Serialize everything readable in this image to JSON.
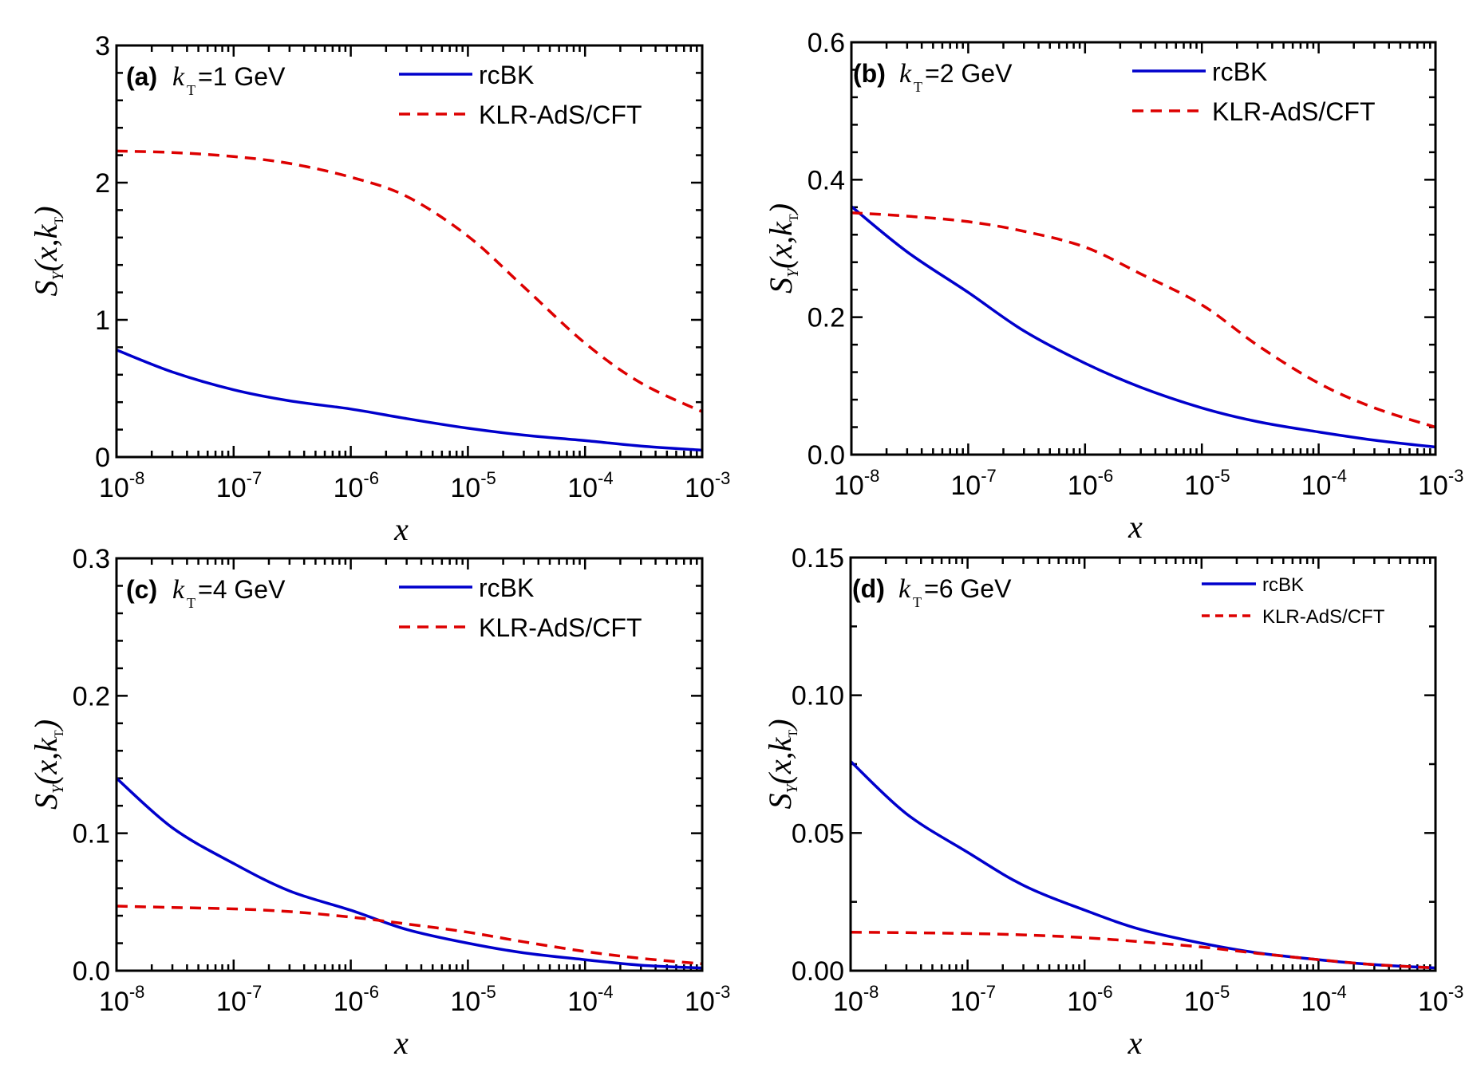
{
  "chart_data": [
    {
      "type": "line",
      "panel": "(a)",
      "title_tag": "(a)",
      "title_k": "k",
      "title_k_sub": "T",
      "title_value": "=1 GeV",
      "xlabel": "x",
      "ylabel": "S_Y(x,k_T)",
      "xscale": "log",
      "xlim": [
        1e-08,
        0.001
      ],
      "ylim": [
        0,
        3
      ],
      "yticks": [
        0,
        1,
        2,
        3
      ],
      "ytick_labels": [
        "0",
        "1",
        "2",
        "3"
      ],
      "yminor_step": 0.2,
      "xticks": [
        1e-08,
        1e-07,
        1e-06,
        1e-05,
        0.0001,
        0.001
      ],
      "xtick_labels": [
        {
          "base": "10",
          "exp": "-8"
        },
        {
          "base": "10",
          "exp": "-7"
        },
        {
          "base": "10",
          "exp": "-6"
        },
        {
          "base": "10",
          "exp": "-5"
        },
        {
          "base": "10",
          "exp": "-4"
        },
        {
          "base": "10",
          "exp": "-3"
        }
      ],
      "legend_position": "top-right",
      "legend_size": "normal",
      "x": [
        1e-08,
        3e-08,
        1e-07,
        3e-07,
        1e-06,
        3e-06,
        1e-05,
        3e-05,
        0.0001,
        0.0003,
        0.001
      ],
      "series": [
        {
          "name": "rcBK",
          "style": "solid",
          "color": "#0000cc",
          "values": [
            0.78,
            0.62,
            0.49,
            0.41,
            0.35,
            0.28,
            0.21,
            0.16,
            0.12,
            0.08,
            0.05
          ]
        },
        {
          "name": "KLR-AdS/CFT",
          "style": "dashed",
          "color": "#dd0000",
          "values": [
            2.23,
            2.22,
            2.19,
            2.14,
            2.04,
            1.9,
            1.61,
            1.24,
            0.83,
            0.54,
            0.33
          ]
        }
      ]
    },
    {
      "type": "line",
      "panel": "(b)",
      "title_tag": "(b)",
      "title_k": "k",
      "title_k_sub": "T",
      "title_value": "=2 GeV",
      "xlabel": "x",
      "ylabel": "S_Y(x,k_T)",
      "xscale": "log",
      "xlim": [
        1e-08,
        0.001
      ],
      "ylim": [
        0,
        0.6
      ],
      "yticks": [
        0,
        0.2,
        0.4,
        0.6
      ],
      "ytick_labels": [
        "0.0",
        "0.2",
        "0.4",
        "0.6"
      ],
      "yminor_step": 0.04,
      "xticks": [
        1e-08,
        1e-07,
        1e-06,
        1e-05,
        0.0001,
        0.001
      ],
      "xtick_labels": [
        {
          "base": "10",
          "exp": "-8"
        },
        {
          "base": "10",
          "exp": "-7"
        },
        {
          "base": "10",
          "exp": "-6"
        },
        {
          "base": "10",
          "exp": "-5"
        },
        {
          "base": "10",
          "exp": "-4"
        },
        {
          "base": "10",
          "exp": "-3"
        }
      ],
      "legend_position": "top-right",
      "legend_size": "normal",
      "x": [
        1e-08,
        3e-08,
        1e-07,
        3e-07,
        1e-06,
        3e-06,
        1e-05,
        3e-05,
        0.0001,
        0.0003,
        0.001
      ],
      "series": [
        {
          "name": "rcBK",
          "style": "solid",
          "color": "#0000cc",
          "values": [
            0.361,
            0.295,
            0.236,
            0.18,
            0.133,
            0.098,
            0.068,
            0.048,
            0.033,
            0.021,
            0.011
          ]
        },
        {
          "name": "KLR-AdS/CFT",
          "style": "dashed",
          "color": "#dd0000",
          "values": [
            0.352,
            0.347,
            0.339,
            0.325,
            0.302,
            0.263,
            0.218,
            0.159,
            0.104,
            0.068,
            0.04
          ]
        }
      ]
    },
    {
      "type": "line",
      "panel": "(c)",
      "title_tag": "(c)",
      "title_k": "k",
      "title_k_sub": "T",
      "title_value": "=4 GeV",
      "xlabel": "x",
      "ylabel": "S_Y(x,k_T)",
      "xscale": "log",
      "xlim": [
        1e-08,
        0.001
      ],
      "ylim": [
        0,
        0.3
      ],
      "yticks": [
        0,
        0.1,
        0.2,
        0.3
      ],
      "ytick_labels": [
        "0.0",
        "0.1",
        "0.2",
        "0.3"
      ],
      "yminor_step": 0.02,
      "xticks": [
        1e-08,
        1e-07,
        1e-06,
        1e-05,
        0.0001,
        0.001
      ],
      "xtick_labels": [
        {
          "base": "10",
          "exp": "-8"
        },
        {
          "base": "10",
          "exp": "-7"
        },
        {
          "base": "10",
          "exp": "-6"
        },
        {
          "base": "10",
          "exp": "-5"
        },
        {
          "base": "10",
          "exp": "-4"
        },
        {
          "base": "10",
          "exp": "-3"
        }
      ],
      "legend_position": "top-right",
      "legend_size": "normal",
      "x": [
        1e-08,
        3e-08,
        1e-07,
        3e-07,
        1e-06,
        3e-06,
        1e-05,
        3e-05,
        0.0001,
        0.0003,
        0.001
      ],
      "series": [
        {
          "name": "rcBK",
          "style": "solid",
          "color": "#0000cc",
          "values": [
            0.14,
            0.104,
            0.078,
            0.058,
            0.044,
            0.03,
            0.02,
            0.013,
            0.008,
            0.004,
            0.002
          ]
        },
        {
          "name": "KLR-AdS/CFT",
          "style": "dashed",
          "color": "#dd0000",
          "values": [
            0.047,
            0.046,
            0.045,
            0.043,
            0.039,
            0.034,
            0.028,
            0.021,
            0.014,
            0.009,
            0.005
          ]
        }
      ]
    },
    {
      "type": "line",
      "panel": "(d)",
      "title_tag": "(d)",
      "title_k": "k",
      "title_k_sub": "T",
      "title_value": "=6 GeV",
      "xlabel": "x",
      "ylabel": "S_Y(x,k_T)",
      "xscale": "log",
      "xlim": [
        1e-08,
        0.001
      ],
      "ylim": [
        0,
        0.15
      ],
      "yticks": [
        0,
        0.05,
        0.1,
        0.15
      ],
      "ytick_labels": [
        "0.00",
        "0.05",
        "0.10",
        "0.15"
      ],
      "yminor_step": 0.025,
      "xticks": [
        1e-08,
        1e-07,
        1e-06,
        1e-05,
        0.0001,
        0.001
      ],
      "xtick_labels": [
        {
          "base": "10",
          "exp": "-8"
        },
        {
          "base": "10",
          "exp": "-7"
        },
        {
          "base": "10",
          "exp": "-6"
        },
        {
          "base": "10",
          "exp": "-5"
        },
        {
          "base": "10",
          "exp": "-4"
        },
        {
          "base": "10",
          "exp": "-3"
        }
      ],
      "legend_position": "top-right",
      "legend_size": "small",
      "x": [
        1e-08,
        3e-08,
        1e-07,
        3e-07,
        1e-06,
        3e-06,
        1e-05,
        3e-05,
        0.0001,
        0.0003,
        0.001
      ],
      "series": [
        {
          "name": "rcBK",
          "style": "solid",
          "color": "#0000cc",
          "values": [
            0.076,
            0.057,
            0.043,
            0.031,
            0.022,
            0.015,
            0.01,
            0.0065,
            0.004,
            0.0022,
            0.001
          ]
        },
        {
          "name": "KLR-AdS/CFT",
          "style": "dashed",
          "color": "#dd0000",
          "values": [
            0.014,
            0.0138,
            0.0135,
            0.013,
            0.012,
            0.0105,
            0.0086,
            0.0063,
            0.004,
            0.0022,
            0.001
          ]
        }
      ]
    }
  ]
}
